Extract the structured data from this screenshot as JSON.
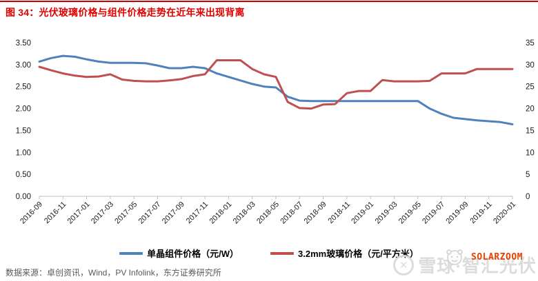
{
  "figure": {
    "title": "图 34：光伏玻璃价格与组件价格走势在近年来出现背离",
    "source": "数据来源：卓创资讯，Wind，PV Infolink，东方证券研究所"
  },
  "watermarks": {
    "xueqiu_text": "雪球·智汇光伏",
    "solarzoom_text": "SOLARZOOM"
  },
  "colors": {
    "title_red": "#E00000",
    "top_rule_red": "#CC0000",
    "module_line_blue": "#4F81BD",
    "glass_line_red": "#C0504D",
    "axis_gray": "#BFBFBF",
    "axis_text": "#1A1A1A",
    "source_gray": "#595959",
    "watermark_gray": "#DBDBDB",
    "solarzoom_red": "#E84200"
  },
  "chart_data": {
    "type": "line",
    "grid": false,
    "legend_position": "bottom",
    "x": [
      "2016-09",
      "2016-10",
      "2016-11",
      "2016-12",
      "2017-01",
      "2017-02",
      "2017-03",
      "2017-04",
      "2017-05",
      "2017-06",
      "2017-07",
      "2017-08",
      "2017-09",
      "2017-10",
      "2017-11",
      "2017-12",
      "2018-01",
      "2018-02",
      "2018-03",
      "2018-04",
      "2018-05",
      "2018-06",
      "2018-07",
      "2018-08",
      "2018-09",
      "2018-10",
      "2018-11",
      "2018-12",
      "2019-01",
      "2019-02",
      "2019-03",
      "2019-04",
      "2019-05",
      "2019-06",
      "2019-07",
      "2019-08",
      "2019-09",
      "2019-10",
      "2019-11",
      "2019-12",
      "2020-01"
    ],
    "x_tick_labels": [
      "2016-09",
      "2016-11",
      "2017-01",
      "2017-03",
      "2017-05",
      "2017-07",
      "2017-09",
      "2017-11",
      "2018-01",
      "2018-03",
      "2018-05",
      "2018-07",
      "2018-09",
      "2018-11",
      "2019-01",
      "2019-03",
      "2019-05",
      "2019-07",
      "2019-09",
      "2019-11",
      "2020-01"
    ],
    "left_axis": {
      "min": 0,
      "max": 3.5,
      "step": 0.5,
      "labels": [
        "0.00",
        "0.50",
        "1.00",
        "1.50",
        "2.00",
        "2.50",
        "3.00",
        "3.50"
      ]
    },
    "right_axis": {
      "min": 0,
      "max": 35,
      "step": 5,
      "labels": [
        "0",
        "5",
        "10",
        "15",
        "20",
        "25",
        "30",
        "35"
      ]
    },
    "series": [
      {
        "name": "单晶组件价格（元/W）",
        "axis": "left",
        "color": "#4F81BD",
        "values": [
          3.07,
          3.15,
          3.2,
          3.18,
          3.12,
          3.07,
          3.04,
          3.04,
          3.04,
          3.03,
          2.98,
          2.92,
          2.92,
          2.95,
          2.92,
          2.8,
          2.72,
          2.64,
          2.56,
          2.5,
          2.48,
          2.27,
          2.18,
          2.17,
          2.17,
          2.17,
          2.17,
          2.17,
          2.17,
          2.17,
          2.17,
          2.17,
          2.17,
          2.0,
          1.88,
          1.79,
          1.76,
          1.73,
          1.71,
          1.69,
          1.64
        ]
      },
      {
        "name": "3.2mm玻璃价格（元/平方米）",
        "axis": "right",
        "color": "#C0504D",
        "values": [
          29.5,
          28.7,
          28.0,
          27.5,
          27.2,
          27.3,
          27.8,
          26.6,
          26.3,
          26.2,
          26.2,
          26.4,
          26.7,
          27.4,
          27.8,
          31.0,
          31.0,
          31.0,
          29.0,
          27.8,
          27.2,
          21.5,
          20.1,
          20.0,
          20.9,
          21.0,
          23.5,
          24.0,
          24.0,
          26.5,
          26.2,
          26.2,
          26.2,
          26.3,
          28.0,
          28.0,
          28.0,
          29.0,
          29.0,
          29.0,
          29.0
        ]
      }
    ]
  }
}
